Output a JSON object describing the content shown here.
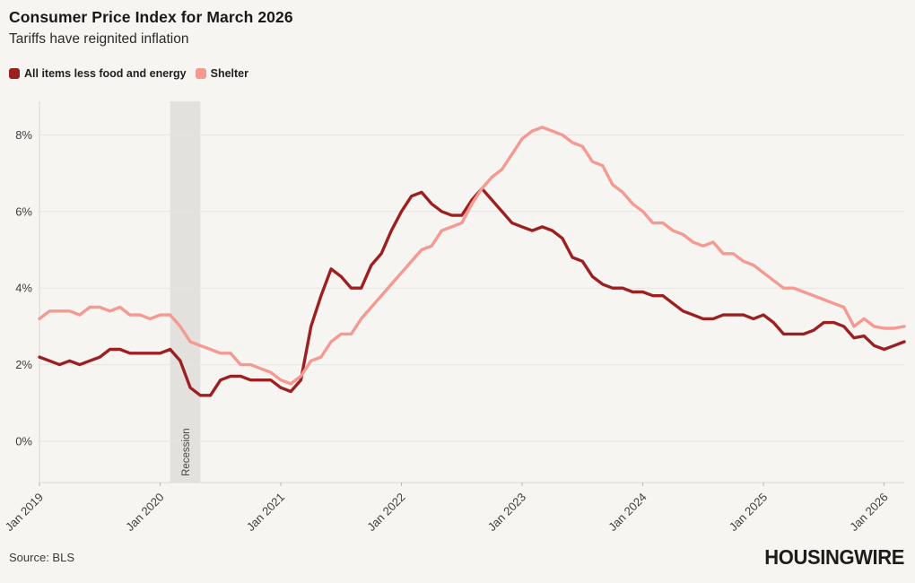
{
  "header": {
    "title": "Consumer Price Index for March 2026",
    "subtitle": "Tariffs have reignited inflation"
  },
  "legend": [
    {
      "label": "All items less food and energy",
      "color": "#9c2022"
    },
    {
      "label": "Shelter",
      "color": "#f49a93"
    }
  ],
  "footer": {
    "source": "Source: BLS",
    "logo": "HOUSINGWIRE"
  },
  "chart_data": {
    "type": "line",
    "title": "Consumer Price Index for March 2026",
    "subtitle": "Tariffs have reignited inflation",
    "x_range": [
      "Jan 2019",
      "Mar 2026"
    ],
    "x_interval": "monthly",
    "ylim": [
      0,
      8.95
    ],
    "grid": "horizontal",
    "legend_position": "top-left",
    "y_ticks": [
      {
        "value": 0,
        "label": "0%"
      },
      {
        "value": 2,
        "label": "2%"
      },
      {
        "value": 4,
        "label": "4%"
      },
      {
        "value": 6,
        "label": "6%"
      },
      {
        "value": 8,
        "label": "8%"
      }
    ],
    "x_ticks": [
      {
        "index": 0,
        "label": "Jan 2019"
      },
      {
        "index": 12,
        "label": "Jan 2020"
      },
      {
        "index": 24,
        "label": "Jan 2021"
      },
      {
        "index": 36,
        "label": "Jan 2022"
      },
      {
        "index": 48,
        "label": "Jan 2023"
      },
      {
        "index": 60,
        "label": "Jan 2024"
      },
      {
        "index": 72,
        "label": "Jan 2025"
      },
      {
        "index": 84,
        "label": "Jan 2026"
      }
    ],
    "recession": {
      "label": "Recession",
      "start_index": 13,
      "end_index": 16
    },
    "colors": {
      "grid": "#e7e5e1",
      "axis": "#d8d6d2",
      "tick": "#b9b7b3",
      "band": "#e3e1dd",
      "background": "#f7f5f1"
    },
    "series": [
      {
        "id": "core",
        "name": "All items less food and energy",
        "color": "#9c2022",
        "values": [
          2.2,
          2.1,
          2.0,
          2.1,
          2.0,
          2.1,
          2.2,
          2.4,
          2.4,
          2.3,
          2.3,
          2.3,
          2.3,
          2.4,
          2.1,
          1.4,
          1.2,
          1.2,
          1.6,
          1.7,
          1.7,
          1.6,
          1.6,
          1.6,
          1.4,
          1.3,
          1.6,
          3.0,
          3.8,
          4.5,
          4.3,
          4.0,
          4.0,
          4.6,
          4.9,
          5.5,
          6.0,
          6.4,
          6.5,
          6.2,
          6.0,
          5.9,
          5.9,
          6.3,
          6.6,
          6.3,
          6.0,
          5.7,
          5.6,
          5.5,
          5.6,
          5.5,
          5.3,
          4.8,
          4.7,
          4.3,
          4.1,
          4.0,
          4.0,
          3.9,
          3.9,
          3.8,
          3.8,
          3.6,
          3.4,
          3.3,
          3.2,
          3.2,
          3.3,
          3.3,
          3.3,
          3.2,
          3.3,
          3.1,
          2.8,
          2.8,
          2.8,
          2.9,
          3.1,
          3.1,
          3.0,
          2.7,
          2.75,
          2.5,
          2.4,
          2.5,
          2.6
        ]
      },
      {
        "id": "shelter",
        "name": "Shelter",
        "color": "#f49a93",
        "values": [
          3.2,
          3.4,
          3.4,
          3.4,
          3.3,
          3.5,
          3.5,
          3.4,
          3.5,
          3.3,
          3.3,
          3.2,
          3.3,
          3.3,
          3.0,
          2.6,
          2.5,
          2.4,
          2.3,
          2.3,
          2.0,
          2.0,
          1.9,
          1.8,
          1.6,
          1.5,
          1.7,
          2.1,
          2.2,
          2.6,
          2.8,
          2.8,
          3.2,
          3.5,
          3.8,
          4.1,
          4.4,
          4.7,
          5.0,
          5.1,
          5.5,
          5.6,
          5.7,
          6.2,
          6.6,
          6.9,
          7.1,
          7.5,
          7.9,
          8.1,
          8.2,
          8.1,
          8.0,
          7.8,
          7.7,
          7.3,
          7.2,
          6.7,
          6.5,
          6.2,
          6.0,
          5.7,
          5.7,
          5.5,
          5.4,
          5.2,
          5.1,
          5.2,
          4.9,
          4.9,
          4.7,
          4.6,
          4.4,
          4.2,
          4.0,
          4.0,
          3.9,
          3.8,
          3.7,
          3.6,
          3.5,
          3.0,
          3.2,
          3.0,
          2.95,
          2.95,
          3.0
        ]
      }
    ]
  }
}
